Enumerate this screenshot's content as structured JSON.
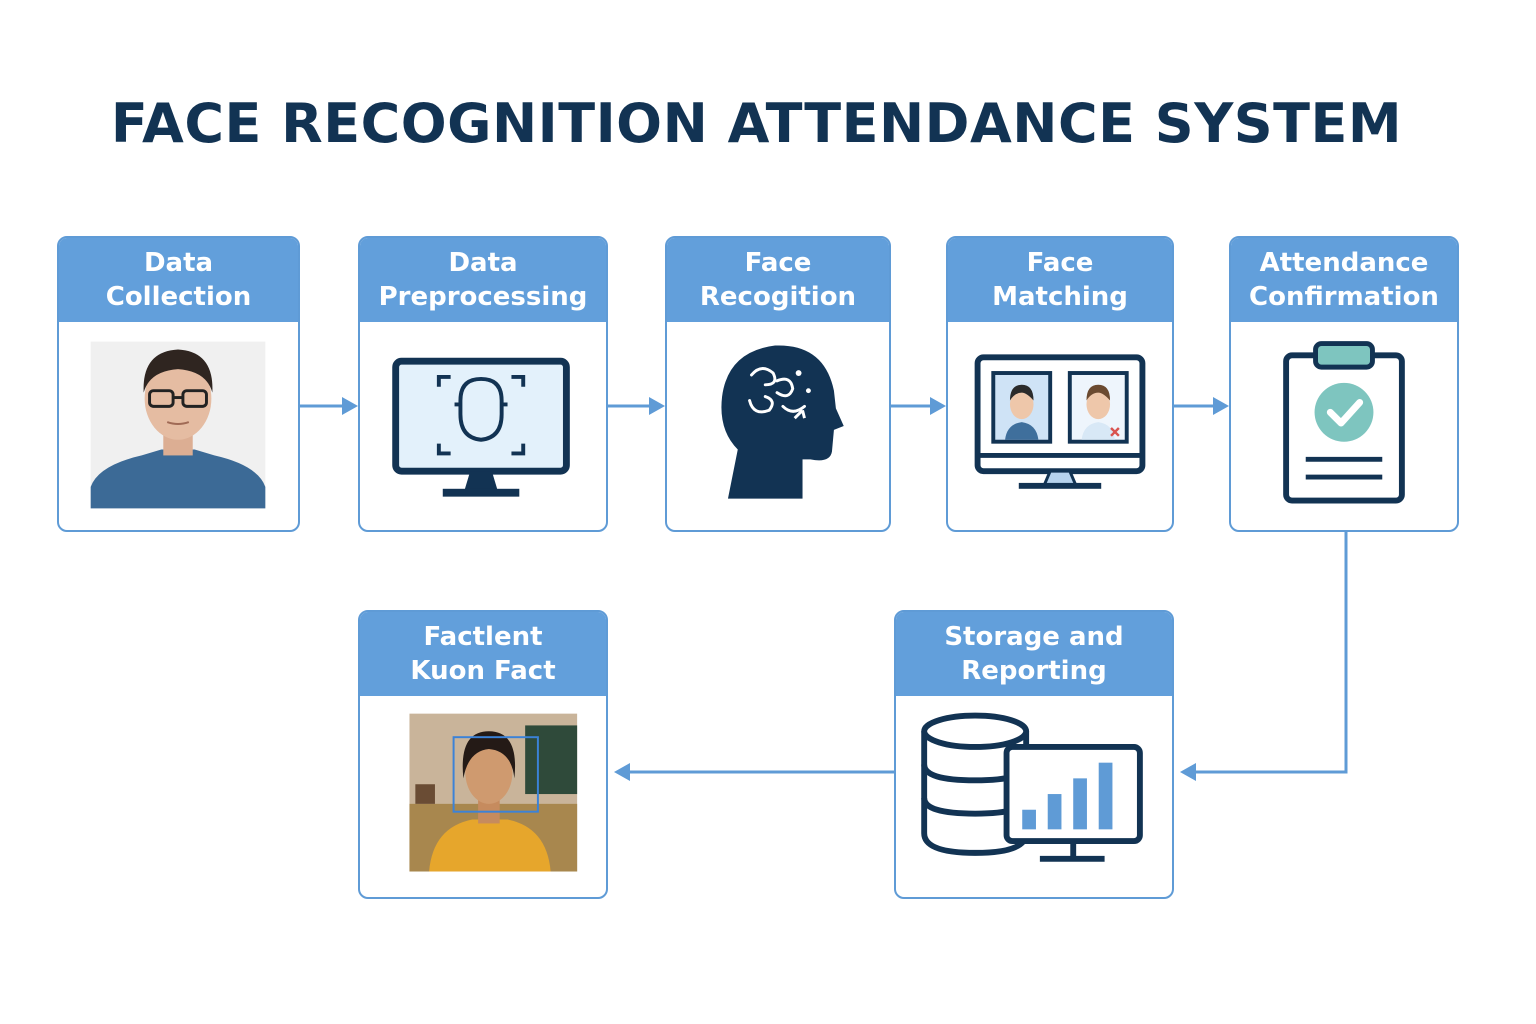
{
  "title": "FACE RECOGNITION ATTENDANCE SYSTEM",
  "steps": [
    {
      "label": "Data\nCollection"
    },
    {
      "label": "Data\nPreprocessing"
    },
    {
      "label": "Face\nRecogition"
    },
    {
      "label": "Face\nMatching"
    },
    {
      "label": "Attendance\nConfirmation"
    },
    {
      "label": "Storage and\nReporting"
    },
    {
      "label": "Factlent\nKuon Fact"
    }
  ],
  "colors": {
    "header": "#629fdb",
    "border": "#5f9bd6",
    "icon_dark": "#123353",
    "title": "#123353",
    "check": "#7ec5bf"
  }
}
